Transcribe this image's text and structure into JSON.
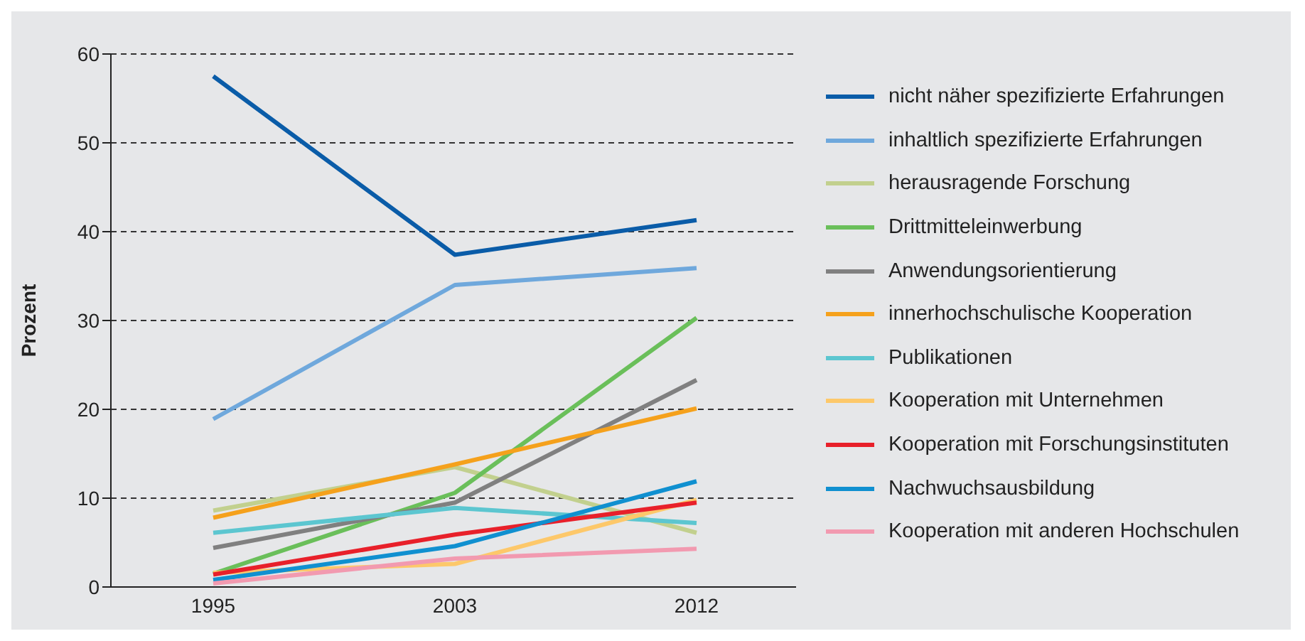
{
  "chart_data": {
    "type": "line",
    "ylabel": "Prozent",
    "categories": [
      "1995",
      "2003",
      "2012"
    ],
    "ylim": [
      0,
      60
    ],
    "yticks": [
      0,
      10,
      20,
      30,
      40,
      50,
      60
    ],
    "grid": "y",
    "legend": "right",
    "marker": "none",
    "line_style": "solid",
    "series": [
      {
        "name": "nicht näher spezifizierte Erfahrungen",
        "color": "#0a5ca8",
        "values": [
          57.5,
          37.4,
          41.3
        ]
      },
      {
        "name": "inhaltlich spezifizierte Erfahrungen",
        "color": "#6fa8dc",
        "values": [
          18.9,
          34.0,
          35.9
        ]
      },
      {
        "name": "herausragende Forschung",
        "color": "#c2d08e",
        "values": [
          8.6,
          13.5,
          6.1
        ]
      },
      {
        "name": "Drittmitteleinwerbung",
        "color": "#6abf5a",
        "values": [
          1.5,
          10.6,
          30.3
        ]
      },
      {
        "name": "Anwendungsorientierung",
        "color": "#808080",
        "values": [
          4.4,
          9.5,
          23.3
        ]
      },
      {
        "name": "innerhochschulische Kooperation",
        "color": "#f5a11c",
        "values": [
          7.8,
          13.8,
          20.1
        ]
      },
      {
        "name": "Publikationen",
        "color": "#5cc6d0",
        "values": [
          6.1,
          8.9,
          7.2
        ]
      },
      {
        "name": "Kooperation mit Unternehmen",
        "color": "#fdc86a",
        "values": [
          1.6,
          2.6,
          9.8
        ]
      },
      {
        "name": "Kooperation mit Forschungsinstituten",
        "color": "#e8202a",
        "values": [
          1.4,
          5.9,
          9.5
        ]
      },
      {
        "name": "Nachwuchsausbildung",
        "color": "#1090d0",
        "values": [
          0.8,
          4.6,
          11.9
        ]
      },
      {
        "name": "Kooperation mit anderen Hochschulen",
        "color": "#f29ab0",
        "values": [
          0.4,
          3.2,
          4.3
        ]
      }
    ]
  }
}
